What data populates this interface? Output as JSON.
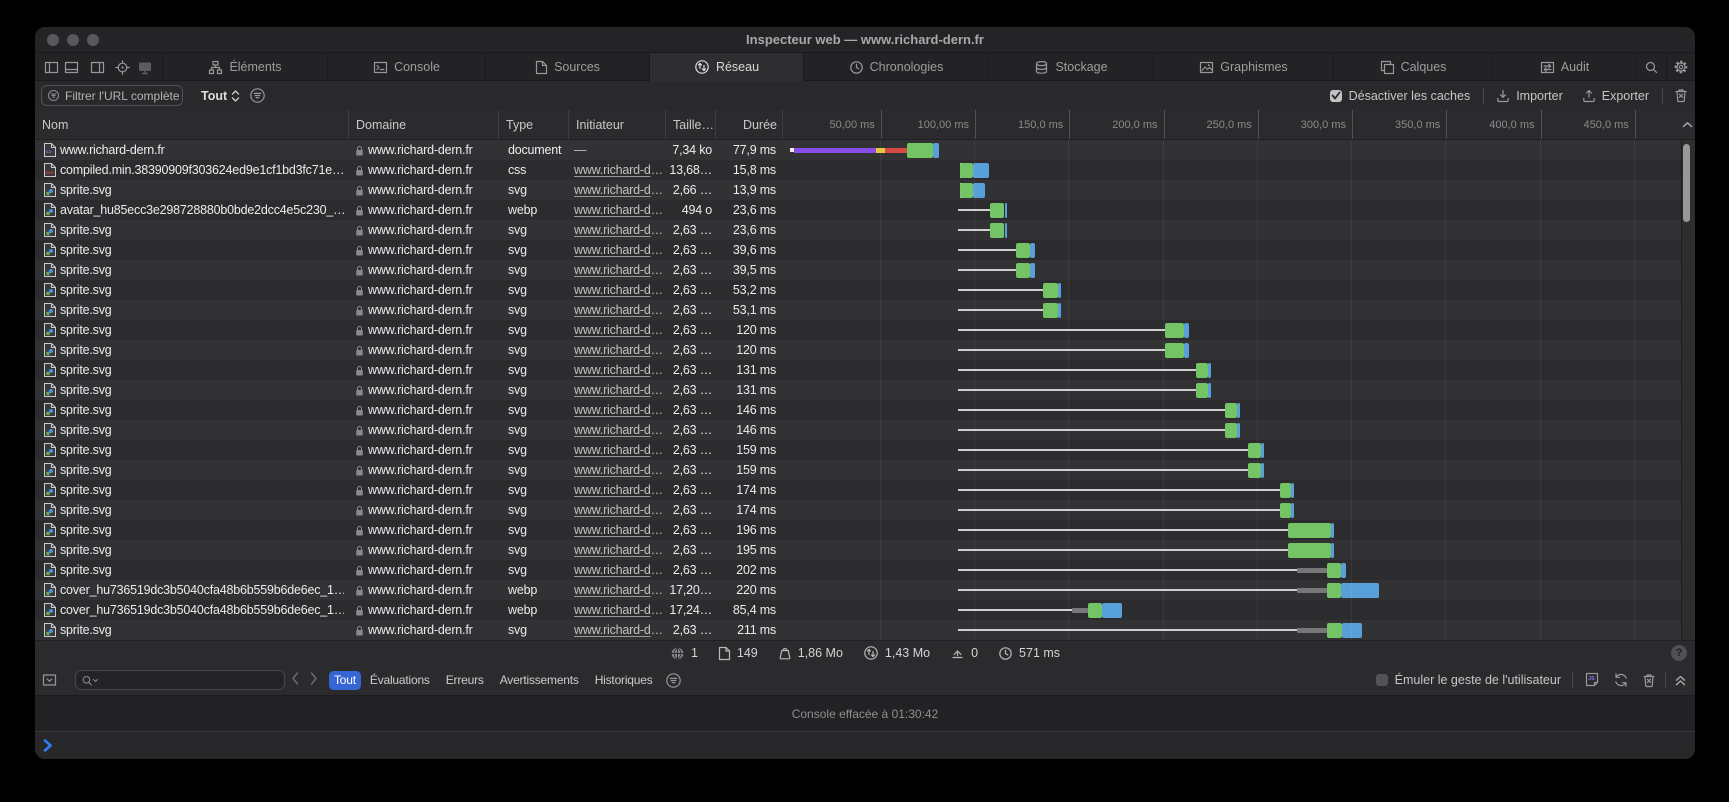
{
  "window": {
    "title": "Inspecteur web — www.richard-dern.fr"
  },
  "tabbar": {
    "layout_icons": [
      "dock-left-icon",
      "dock-bottom-icon",
      "dock-right-icon",
      "target-icon",
      "device-icon"
    ],
    "tabs": [
      {
        "label": "Éléments",
        "icon": "elements-icon",
        "selected": false
      },
      {
        "label": "Console",
        "icon": "console-icon",
        "selected": false
      },
      {
        "label": "Sources",
        "icon": "sources-icon",
        "selected": false
      },
      {
        "label": "Réseau",
        "icon": "network-icon",
        "selected": true
      },
      {
        "label": "Chronologies",
        "icon": "timelines-icon",
        "selected": false
      },
      {
        "label": "Stockage",
        "icon": "storage-icon",
        "selected": false
      },
      {
        "label": "Graphismes",
        "icon": "graphics-icon",
        "selected": false
      },
      {
        "label": "Calques",
        "icon": "layers-icon",
        "selected": false
      },
      {
        "label": "Audit",
        "icon": "audit-icon",
        "selected": false
      }
    ],
    "search_icon": "search-icon",
    "settings_icon": "gear-icon"
  },
  "network_toolbar": {
    "filter_placeholder": "Filtrer l'URL complète",
    "type_filter_value": "Tout",
    "disable_caches_label": "Désactiver les caches",
    "disable_caches_checked": true,
    "import_label": "Importer",
    "export_label": "Exporter"
  },
  "table": {
    "columns": [
      "Nom",
      "Domaine",
      "Type",
      "Initiateur",
      "Taille…",
      "Durée"
    ],
    "ruler_ticks": [
      {
        "t": 50,
        "label": "50,00 ms"
      },
      {
        "t": 100,
        "label": "100,00 ms"
      },
      {
        "t": 150,
        "label": "150,0 ms"
      },
      {
        "t": 200,
        "label": "200,0 ms"
      },
      {
        "t": 250,
        "label": "250,0 ms"
      },
      {
        "t": 300,
        "label": "300,0 ms"
      },
      {
        "t": 350,
        "label": "350,0 ms"
      },
      {
        "t": 400,
        "label": "400,0 ms"
      },
      {
        "t": 450,
        "label": "450,0 ms"
      }
    ],
    "rows": [
      {
        "icon": "html-file-icon",
        "name": "www.richard-dern.fr",
        "domain": "www.richard-dern.fr",
        "type": "document",
        "initiator": "—",
        "initiator_is_link": false,
        "size": "7,34 ko",
        "duration": "77,9 ms",
        "waterfall": [
          {
            "kind": "dot",
            "t0": 2.3,
            "t1": 4.6
          },
          {
            "kind": "purple",
            "t0": 4.6,
            "t1": 48.0
          },
          {
            "kind": "yellow",
            "t0": 48.0,
            "t1": 53.0
          },
          {
            "kind": "red",
            "t0": 53.0,
            "t1": 64.5
          },
          {
            "kind": "green",
            "t0": 64.5,
            "t1": 78.3
          },
          {
            "kind": "blue",
            "t0": 78.3,
            "t1": 81.5
          }
        ]
      },
      {
        "icon": "css-file-icon",
        "name": "compiled.min.38390909f303624ed9e1cf1bd3fc71e…",
        "domain": "www.richard-dern.fr",
        "type": "css",
        "initiator": "www.richard-d…",
        "initiator_is_link": true,
        "size": "13,68…",
        "duration": "15,8 ms",
        "waterfall": [
          {
            "kind": "tick",
            "t0": 92.3,
            "t1": 93.4
          },
          {
            "kind": "green",
            "t0": 92.3,
            "t1": 99.5
          },
          {
            "kind": "blue",
            "t0": 99.5,
            "t1": 108.1
          }
        ]
      },
      {
        "icon": "image-file-icon",
        "name": "sprite.svg",
        "domain": "www.richard-dern.fr",
        "type": "svg",
        "initiator": "www.richard-d…",
        "initiator_is_link": true,
        "size": "2,66 …",
        "duration": "13,9 ms",
        "waterfall": [
          {
            "kind": "tick",
            "t0": 92.3,
            "t1": 93.4
          },
          {
            "kind": "green",
            "t0": 92.3,
            "t1": 99.5
          },
          {
            "kind": "blue",
            "t0": 99.5,
            "t1": 106.0
          }
        ]
      },
      {
        "icon": "image-file-icon",
        "name": "avatar_hu85ecc3e298728880b0bde2dcc4e5c230_…",
        "domain": "www.richard-dern.fr",
        "type": "webp",
        "initiator": "www.richard-d…",
        "initiator_is_link": true,
        "size": "494 o",
        "duration": "23,6 ms",
        "waterfall": [
          {
            "kind": "line",
            "t0": 91.5,
            "t1": 108.6
          },
          {
            "kind": "green",
            "t0": 108.6,
            "t1": 116.2
          },
          {
            "kind": "blue",
            "t0": 116.2,
            "t1": 117.5
          }
        ]
      },
      {
        "icon": "image-file-icon",
        "name": "sprite.svg",
        "domain": "www.richard-dern.fr",
        "type": "svg",
        "initiator": "www.richard-d…",
        "initiator_is_link": true,
        "size": "2,63 …",
        "duration": "23,6 ms",
        "waterfall": [
          {
            "kind": "line",
            "t0": 91.5,
            "t1": 108.6
          },
          {
            "kind": "green",
            "t0": 108.6,
            "t1": 116.2
          },
          {
            "kind": "blue",
            "t0": 116.2,
            "t1": 117.5
          }
        ]
      },
      {
        "icon": "image-file-icon",
        "name": "sprite.svg",
        "domain": "www.richard-dern.fr",
        "type": "svg",
        "initiator": "www.richard-d…",
        "initiator_is_link": true,
        "size": "2,63 …",
        "duration": "39,6 ms",
        "waterfall": [
          {
            "kind": "line",
            "t0": 91.5,
            "t1": 122.4
          },
          {
            "kind": "green",
            "t0": 122.4,
            "t1": 129.9
          },
          {
            "kind": "blue",
            "t0": 129.9,
            "t1": 132.5
          }
        ]
      },
      {
        "icon": "image-file-icon",
        "name": "sprite.svg",
        "domain": "www.richard-dern.fr",
        "type": "svg",
        "initiator": "www.richard-d…",
        "initiator_is_link": true,
        "size": "2,63 …",
        "duration": "39,5 ms",
        "waterfall": [
          {
            "kind": "line",
            "t0": 91.5,
            "t1": 122.4
          },
          {
            "kind": "green",
            "t0": 122.4,
            "t1": 129.9
          },
          {
            "kind": "blue",
            "t0": 129.9,
            "t1": 132.5
          }
        ]
      },
      {
        "icon": "image-file-icon",
        "name": "sprite.svg",
        "domain": "www.richard-dern.fr",
        "type": "svg",
        "initiator": "www.richard-d…",
        "initiator_is_link": true,
        "size": "2,63 …",
        "duration": "53,2 ms",
        "waterfall": [
          {
            "kind": "line",
            "t0": 91.5,
            "t1": 136.8
          },
          {
            "kind": "green",
            "t0": 136.8,
            "t1": 144.7
          },
          {
            "kind": "blue",
            "t0": 144.7,
            "t1": 146.3
          }
        ]
      },
      {
        "icon": "image-file-icon",
        "name": "sprite.svg",
        "domain": "www.richard-dern.fr",
        "type": "svg",
        "initiator": "www.richard-d…",
        "initiator_is_link": true,
        "size": "2,63 …",
        "duration": "53,1 ms",
        "waterfall": [
          {
            "kind": "line",
            "t0": 91.5,
            "t1": 136.8
          },
          {
            "kind": "green",
            "t0": 136.8,
            "t1": 144.7
          },
          {
            "kind": "blue",
            "t0": 144.7,
            "t1": 146.3
          }
        ]
      },
      {
        "icon": "image-file-icon",
        "name": "sprite.svg",
        "domain": "www.richard-dern.fr",
        "type": "svg",
        "initiator": "www.richard-d…",
        "initiator_is_link": true,
        "size": "2,63 …",
        "duration": "120 ms",
        "waterfall": [
          {
            "kind": "line",
            "t0": 91.5,
            "t1": 201.5
          },
          {
            "kind": "green",
            "t0": 201.5,
            "t1": 211.6
          },
          {
            "kind": "blue",
            "t0": 211.6,
            "t1": 214.2
          }
        ]
      },
      {
        "icon": "image-file-icon",
        "name": "sprite.svg",
        "domain": "www.richard-dern.fr",
        "type": "svg",
        "initiator": "www.richard-d…",
        "initiator_is_link": true,
        "size": "2,63 …",
        "duration": "120 ms",
        "waterfall": [
          {
            "kind": "line",
            "t0": 91.5,
            "t1": 201.5
          },
          {
            "kind": "green",
            "t0": 201.5,
            "t1": 211.6
          },
          {
            "kind": "blue",
            "t0": 211.6,
            "t1": 214.2
          }
        ]
      },
      {
        "icon": "image-file-icon",
        "name": "sprite.svg",
        "domain": "www.richard-dern.fr",
        "type": "svg",
        "initiator": "www.richard-d…",
        "initiator_is_link": true,
        "size": "2,63 …",
        "duration": "131 ms",
        "waterfall": [
          {
            "kind": "line",
            "t0": 91.5,
            "t1": 217.9
          },
          {
            "kind": "green",
            "t0": 217.9,
            "t1": 224.3
          },
          {
            "kind": "blue",
            "t0": 224.3,
            "t1": 225.9
          }
        ]
      },
      {
        "icon": "image-file-icon",
        "name": "sprite.svg",
        "domain": "www.richard-dern.fr",
        "type": "svg",
        "initiator": "www.richard-d…",
        "initiator_is_link": true,
        "size": "2,63 …",
        "duration": "131 ms",
        "waterfall": [
          {
            "kind": "line",
            "t0": 91.5,
            "t1": 217.9
          },
          {
            "kind": "green",
            "t0": 217.9,
            "t1": 224.3
          },
          {
            "kind": "blue",
            "t0": 224.3,
            "t1": 225.9
          }
        ]
      },
      {
        "icon": "image-file-icon",
        "name": "sprite.svg",
        "domain": "www.richard-dern.fr",
        "type": "svg",
        "initiator": "www.richard-d…",
        "initiator_is_link": true,
        "size": "2,63 …",
        "duration": "146 ms",
        "waterfall": [
          {
            "kind": "line",
            "t0": 91.5,
            "t1": 233.3
          },
          {
            "kind": "green",
            "t0": 233.3,
            "t1": 239.7
          },
          {
            "kind": "blue",
            "t0": 239.7,
            "t1": 241.3
          }
        ]
      },
      {
        "icon": "image-file-icon",
        "name": "sprite.svg",
        "domain": "www.richard-dern.fr",
        "type": "svg",
        "initiator": "www.richard-d…",
        "initiator_is_link": true,
        "size": "2,63 …",
        "duration": "146 ms",
        "waterfall": [
          {
            "kind": "line",
            "t0": 91.5,
            "t1": 233.3
          },
          {
            "kind": "green",
            "t0": 233.3,
            "t1": 239.7
          },
          {
            "kind": "blue",
            "t0": 239.7,
            "t1": 241.3
          }
        ]
      },
      {
        "icon": "image-file-icon",
        "name": "sprite.svg",
        "domain": "www.richard-dern.fr",
        "type": "svg",
        "initiator": "www.richard-d…",
        "initiator_is_link": true,
        "size": "2,63 …",
        "duration": "159 ms",
        "waterfall": [
          {
            "kind": "line",
            "t0": 91.5,
            "t1": 245.5
          },
          {
            "kind": "green",
            "t0": 245.5,
            "t1": 252.4
          },
          {
            "kind": "blue",
            "t0": 252.4,
            "t1": 254.0
          }
        ]
      },
      {
        "icon": "image-file-icon",
        "name": "sprite.svg",
        "domain": "www.richard-dern.fr",
        "type": "svg",
        "initiator": "www.richard-d…",
        "initiator_is_link": true,
        "size": "2,63 …",
        "duration": "159 ms",
        "waterfall": [
          {
            "kind": "line",
            "t0": 91.5,
            "t1": 245.5
          },
          {
            "kind": "green",
            "t0": 245.5,
            "t1": 252.4
          },
          {
            "kind": "blue",
            "t0": 252.4,
            "t1": 254.0
          }
        ]
      },
      {
        "icon": "image-file-icon",
        "name": "sprite.svg",
        "domain": "www.richard-dern.fr",
        "type": "svg",
        "initiator": "www.richard-d…",
        "initiator_is_link": true,
        "size": "2,63 …",
        "duration": "174 ms",
        "waterfall": [
          {
            "kind": "line",
            "t0": 91.5,
            "t1": 262.5
          },
          {
            "kind": "green",
            "t0": 262.5,
            "t1": 268.3
          },
          {
            "kind": "blue",
            "t0": 268.3,
            "t1": 269.9
          }
        ]
      },
      {
        "icon": "image-file-icon",
        "name": "sprite.svg",
        "domain": "www.richard-dern.fr",
        "type": "svg",
        "initiator": "www.richard-d…",
        "initiator_is_link": true,
        "size": "2,63 …",
        "duration": "174 ms",
        "waterfall": [
          {
            "kind": "line",
            "t0": 91.5,
            "t1": 262.5
          },
          {
            "kind": "green",
            "t0": 262.5,
            "t1": 268.3
          },
          {
            "kind": "blue",
            "t0": 268.3,
            "t1": 269.9
          }
        ]
      },
      {
        "icon": "image-file-icon",
        "name": "sprite.svg",
        "domain": "www.richard-dern.fr",
        "type": "svg",
        "initiator": "www.richard-d…",
        "initiator_is_link": true,
        "size": "2,63 …",
        "duration": "196 ms",
        "waterfall": [
          {
            "kind": "line",
            "t0": 91.5,
            "t1": 266.7
          },
          {
            "kind": "green",
            "t0": 266.7,
            "t1": 289.5
          },
          {
            "kind": "blue",
            "t0": 289.5,
            "t1": 290.8
          }
        ]
      },
      {
        "icon": "image-file-icon",
        "name": "sprite.svg",
        "domain": "www.richard-dern.fr",
        "type": "svg",
        "initiator": "www.richard-d…",
        "initiator_is_link": true,
        "size": "2,63 …",
        "duration": "195 ms",
        "waterfall": [
          {
            "kind": "line",
            "t0": 91.5,
            "t1": 266.7
          },
          {
            "kind": "green",
            "t0": 266.7,
            "t1": 289.5
          },
          {
            "kind": "blue",
            "t0": 289.5,
            "t1": 290.8
          }
        ]
      },
      {
        "icon": "image-file-icon",
        "name": "sprite.svg",
        "domain": "www.richard-dern.fr",
        "type": "svg",
        "initiator": "www.richard-d…",
        "initiator_is_link": true,
        "size": "2,63 …",
        "duration": "202 ms",
        "waterfall": [
          {
            "kind": "line",
            "t0": 91.5,
            "t1": 271.5
          },
          {
            "kind": "gray",
            "t0": 271.5,
            "t1": 287.4
          },
          {
            "kind": "green",
            "t0": 287.4,
            "t1": 294.8
          },
          {
            "kind": "blue",
            "t0": 294.8,
            "t1": 297.5
          }
        ]
      },
      {
        "icon": "image-file-icon",
        "name": "cover_hu736519dc3b5040cfa48b6b559b6de6ec_1…",
        "domain": "www.richard-dern.fr",
        "type": "webp",
        "initiator": "www.richard-d…",
        "initiator_is_link": true,
        "size": "17,20…",
        "duration": "220 ms",
        "waterfall": [
          {
            "kind": "line",
            "t0": 91.5,
            "t1": 271.5
          },
          {
            "kind": "gray",
            "t0": 271.5,
            "t1": 287.4
          },
          {
            "kind": "green",
            "t0": 287.4,
            "t1": 294.8
          },
          {
            "kind": "blue",
            "t0": 294.8,
            "t1": 314.9
          }
        ]
      },
      {
        "icon": "image-file-icon",
        "name": "cover_hu736519dc3b5040cfa48b6b559b6de6ec_1…",
        "domain": "www.richard-dern.fr",
        "type": "webp",
        "initiator": "www.richard-d…",
        "initiator_is_link": true,
        "size": "17,24…",
        "duration": "85,4 ms",
        "waterfall": [
          {
            "kind": "line",
            "t0": 91.5,
            "t1": 152.1
          },
          {
            "kind": "gray",
            "t0": 152.1,
            "t1": 160.6
          },
          {
            "kind": "green",
            "t0": 160.6,
            "t1": 168.1
          },
          {
            "kind": "blue",
            "t0": 168.1,
            "t1": 178.7
          }
        ]
      },
      {
        "icon": "image-file-icon",
        "name": "sprite.svg",
        "domain": "www.richard-dern.fr",
        "type": "svg",
        "initiator": "www.richard-d…",
        "initiator_is_link": true,
        "size": "2,63 …",
        "duration": "211 ms",
        "waterfall": [
          {
            "kind": "line",
            "t0": 91.5,
            "t1": 271.5
          },
          {
            "kind": "gray",
            "t0": 271.5,
            "t1": 287.4
          },
          {
            "kind": "green",
            "t0": 287.4,
            "t1": 295.3
          },
          {
            "kind": "blue",
            "t0": 295.3,
            "t1": 305.9
          }
        ]
      }
    ]
  },
  "statusbar": {
    "items": [
      {
        "icon": "globe-icon",
        "value": "1"
      },
      {
        "icon": "page-icon",
        "value": "149"
      },
      {
        "icon": "weight-icon",
        "value": "1,86 Mo"
      },
      {
        "icon": "transfer-icon",
        "value": "1,43 Mo"
      },
      {
        "icon": "cache-icon",
        "value": "0"
      },
      {
        "icon": "clock-icon",
        "value": "571 ms"
      }
    ],
    "help_label": "?"
  },
  "console_toolbar": {
    "scopes": [
      {
        "label": "Tout",
        "selected": true
      },
      {
        "label": "Évaluations",
        "selected": false
      },
      {
        "label": "Erreurs",
        "selected": false
      },
      {
        "label": "Avertissements",
        "selected": false
      },
      {
        "label": "Historiques",
        "selected": false
      }
    ],
    "emulate_label": "Émuler le geste de l'utilisateur",
    "emulate_checked": false
  },
  "console": {
    "message": "Console effacée à 01:30:42"
  },
  "colors": {
    "accent_blue": "#3566d4",
    "prompt_blue": "#2f7bf6",
    "wf_purple": "#8a4fe8",
    "wf_yellow": "#e6c83e",
    "wf_red": "#d64a42",
    "wf_green": "#74c364",
    "wf_blue": "#58a0d9"
  }
}
